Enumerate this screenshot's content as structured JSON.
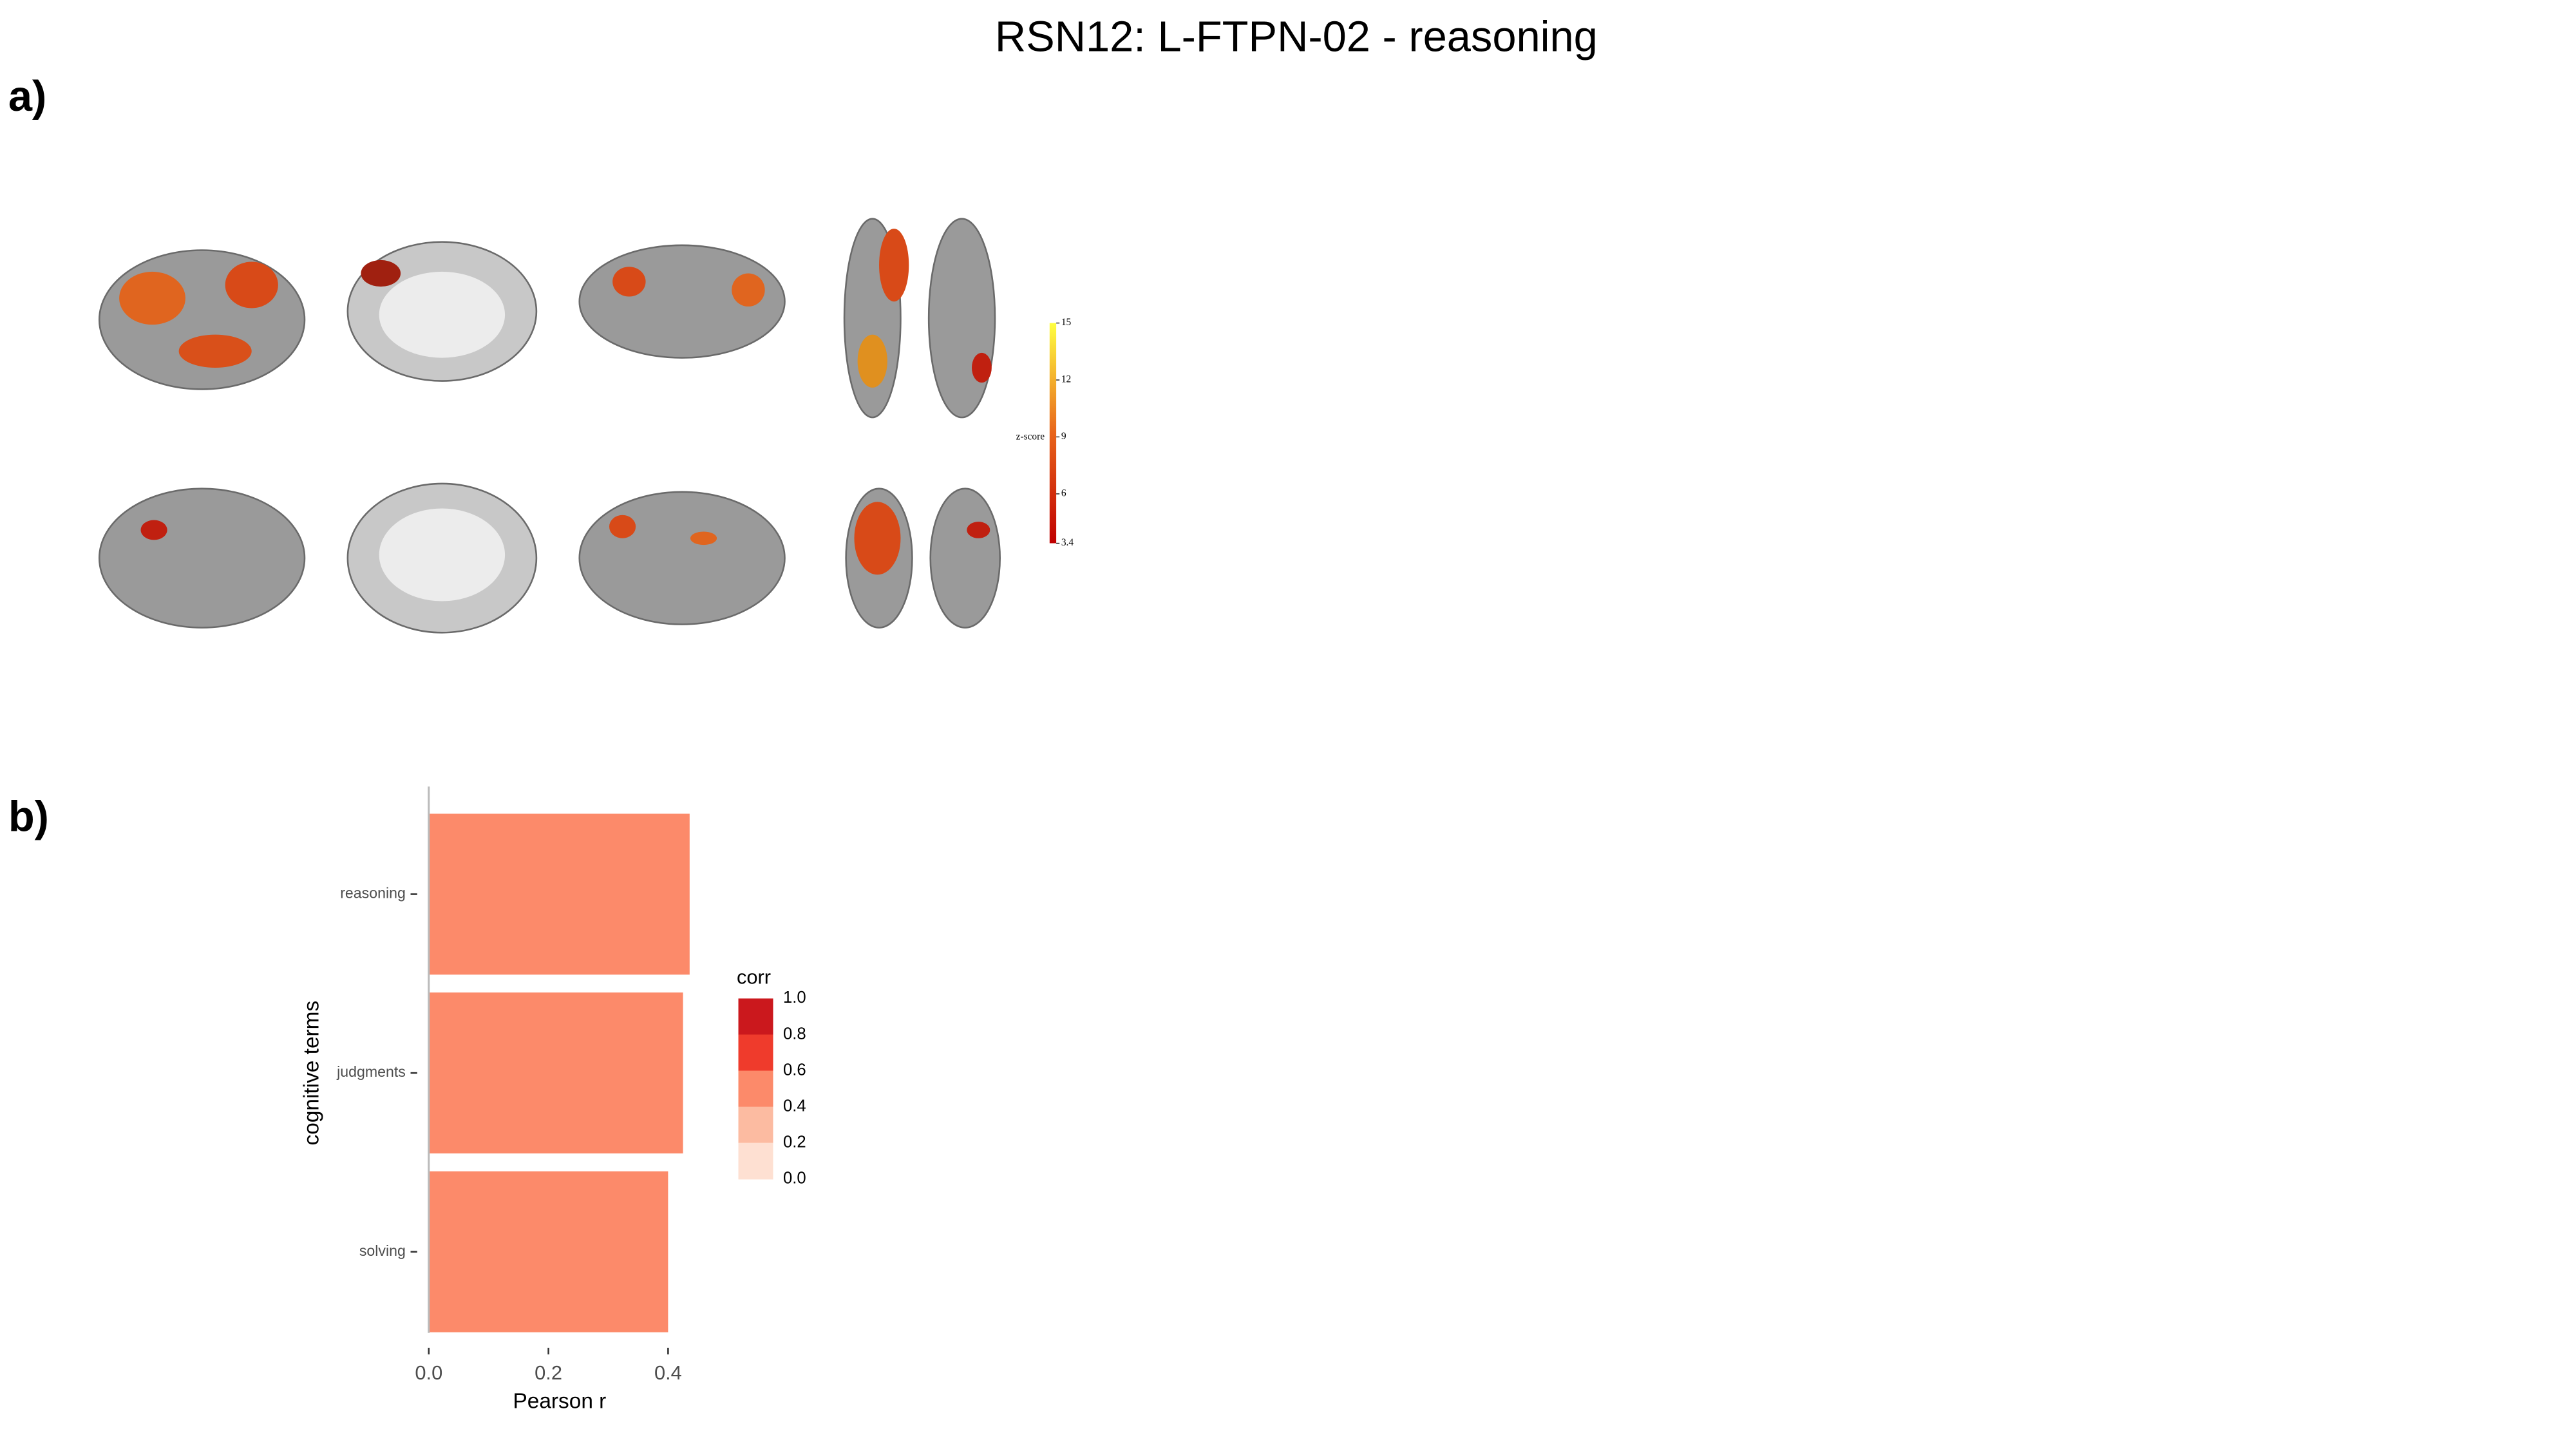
{
  "title": "RSN12: L-FTPN-02 - reasoning",
  "panel_labels": [
    "a)",
    "b)"
  ],
  "colorbar": {
    "label": "z-score",
    "lim": [
      3.4,
      15
    ],
    "ticks": [
      3.4,
      6,
      9,
      12,
      15
    ]
  },
  "chart_data": {
    "type": "bar",
    "orientation": "horizontal",
    "categories": [
      "reasoning",
      "judgments",
      "solving"
    ],
    "values": [
      0.436,
      0.425,
      0.4
    ],
    "xlabel": "Pearson r",
    "ylabel": "cognitive terms",
    "xlim": [
      0,
      0.44
    ],
    "xticks": [
      {
        "value": 0,
        "label": "0.0"
      },
      {
        "value": 0.2,
        "label": "0.2"
      },
      {
        "value": 0.4,
        "label": "0.4"
      }
    ],
    "legend": {
      "title": "corr",
      "ticks": [
        {
          "value": 1,
          "label": "1.0"
        },
        {
          "value": 0.8,
          "label": "0.8"
        },
        {
          "value": 0.6,
          "label": "0.6"
        },
        {
          "value": 0.4,
          "label": "0.4"
        },
        {
          "value": 0.2,
          "label": "0.2"
        },
        {
          "value": 0,
          "label": "0.0"
        }
      ],
      "colors": [
        "#cb181d",
        "#ef3b2c",
        "#fc8a6a",
        "#fcbba1",
        "#fee0d2"
      ]
    }
  }
}
